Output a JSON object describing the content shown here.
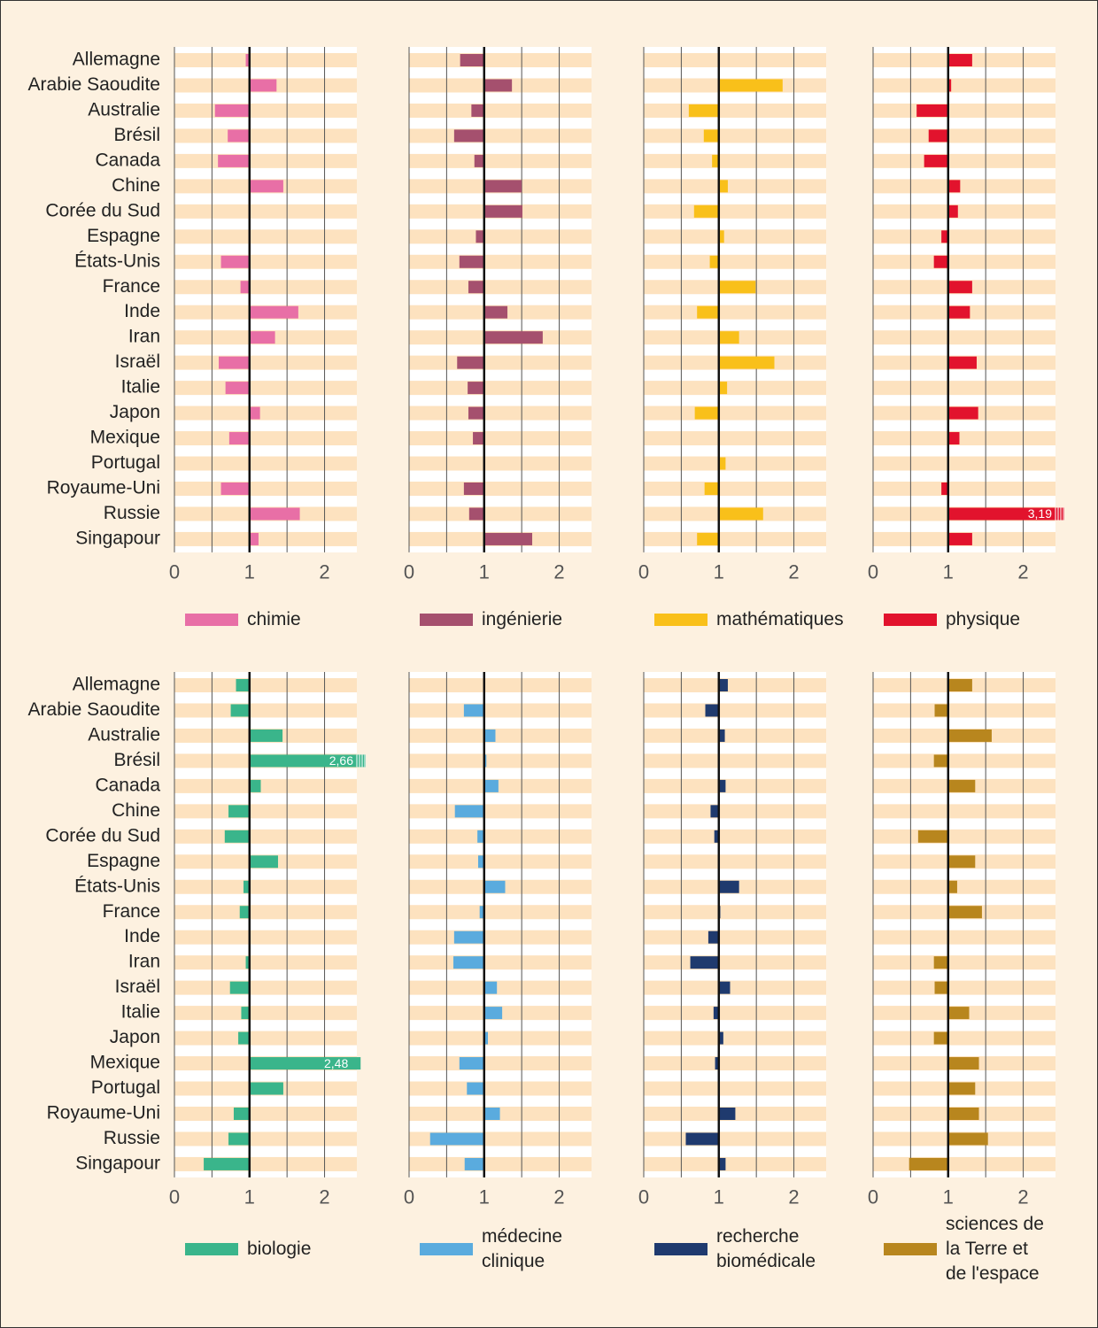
{
  "chart_data": [
    {
      "type": "bar",
      "categories": [
        "Allemagne",
        "Arabie Saoudite",
        "Australie",
        "Brésil",
        "Canada",
        "Chine",
        "Corée du Sud",
        "Espagne",
        "États-Unis",
        "France",
        "Inde",
        "Iran",
        "Israël",
        "Italie",
        "Japon",
        "Mexique",
        "Portugal",
        "Royaume-Uni",
        "Russie",
        "Singapour"
      ],
      "series": [
        {
          "name": "chimie",
          "color": "#e86fa6",
          "values": [
            0.95,
            1.36,
            0.54,
            0.71,
            0.58,
            1.45,
            1.0,
            1.0,
            0.62,
            0.88,
            1.65,
            1.34,
            0.59,
            0.68,
            1.14,
            0.73,
            1.0,
            0.62,
            1.67,
            1.12
          ]
        }
      ],
      "xlim": [
        0,
        2.43
      ],
      "xticks": [
        0,
        1,
        2
      ],
      "minor_xticks": [
        0.5,
        1.5
      ],
      "baseline": 1,
      "grid": true
    },
    {
      "type": "bar",
      "series": [
        {
          "name": "ingénierie",
          "color": "#a5506e",
          "values": [
            0.68,
            1.37,
            0.83,
            0.6,
            0.87,
            1.5,
            1.51,
            0.89,
            0.67,
            0.79,
            1.31,
            1.78,
            0.64,
            0.78,
            0.79,
            0.85,
            1.0,
            0.73,
            0.8,
            1.64
          ]
        }
      ],
      "xlim": [
        0,
        2.43
      ],
      "xticks": [
        0,
        1,
        2
      ],
      "minor_xticks": [
        0.5,
        1.5
      ],
      "baseline": 1,
      "grid": true
    },
    {
      "type": "bar",
      "series": [
        {
          "name": "mathématiques",
          "color": "#f9c01a",
          "values": [
            1.0,
            1.85,
            0.6,
            0.8,
            0.91,
            1.12,
            0.67,
            1.07,
            0.88,
            1.49,
            0.71,
            1.27,
            1.74,
            1.11,
            0.68,
            1.01,
            1.09,
            0.81,
            1.59,
            0.71
          ]
        }
      ],
      "xlim": [
        0,
        2.43
      ],
      "xticks": [
        0,
        1,
        2
      ],
      "minor_xticks": [
        0.5,
        1.5
      ],
      "baseline": 1,
      "grid": true
    },
    {
      "type": "bar",
      "series": [
        {
          "name": "physique",
          "color": "#e2132d",
          "values": [
            1.32,
            1.04,
            0.58,
            0.74,
            0.68,
            1.16,
            1.13,
            0.91,
            0.81,
            1.32,
            1.29,
            1.01,
            1.38,
            1.0,
            1.4,
            1.15,
            1.0,
            0.91,
            3.19,
            1.32
          ],
          "value_labels": [
            null,
            null,
            null,
            null,
            null,
            null,
            null,
            null,
            null,
            null,
            null,
            null,
            null,
            null,
            null,
            null,
            null,
            null,
            "3,19",
            null
          ]
        }
      ],
      "xlim": [
        0,
        2.43
      ],
      "xticks": [
        0,
        1,
        2
      ],
      "minor_xticks": [
        0.5,
        1.5
      ],
      "baseline": 1,
      "grid": true
    },
    {
      "type": "bar",
      "categories": [
        "Allemagne",
        "Arabie Saoudite",
        "Australie",
        "Brésil",
        "Canada",
        "Chine",
        "Corée du Sud",
        "Espagne",
        "États-Unis",
        "France",
        "Inde",
        "Iran",
        "Israël",
        "Italie",
        "Japon",
        "Mexique",
        "Portugal",
        "Royaume-Uni",
        "Russie",
        "Singapour"
      ],
      "series": [
        {
          "name": "biologie",
          "color": "#3ab58b",
          "values": [
            0.82,
            0.75,
            1.44,
            2.66,
            1.15,
            0.72,
            0.67,
            1.38,
            0.92,
            0.87,
            1.0,
            0.95,
            0.74,
            0.89,
            0.85,
            2.48,
            1.45,
            0.79,
            0.72,
            0.39
          ],
          "value_labels": [
            null,
            null,
            null,
            "2,66",
            null,
            null,
            null,
            null,
            null,
            null,
            null,
            null,
            null,
            null,
            null,
            "2,48",
            null,
            null,
            null,
            null
          ]
        }
      ],
      "xlim": [
        0,
        2.43
      ],
      "xticks": [
        0,
        1,
        2
      ],
      "minor_xticks": [
        0.5,
        1.5
      ],
      "baseline": 1,
      "grid": true
    },
    {
      "type": "bar",
      "series": [
        {
          "name": "médecine clinique",
          "color": "#5aabde",
          "values": [
            1.0,
            0.73,
            1.15,
            1.03,
            1.19,
            0.61,
            0.91,
            0.92,
            1.28,
            0.94,
            0.6,
            0.59,
            1.17,
            1.24,
            1.05,
            0.67,
            0.77,
            1.21,
            0.28,
            0.74
          ]
        }
      ],
      "xlim": [
        0,
        2.43
      ],
      "xticks": [
        0,
        1,
        2
      ],
      "minor_xticks": [
        0.5,
        1.5
      ],
      "baseline": 1,
      "grid": true
    },
    {
      "type": "bar",
      "series": [
        {
          "name": "recherche biomédicale",
          "color": "#1f3a6e",
          "values": [
            1.12,
            0.82,
            1.08,
            1.0,
            1.09,
            0.89,
            0.94,
            1.0,
            1.27,
            1.02,
            0.86,
            0.62,
            1.15,
            0.93,
            1.06,
            0.95,
            1.0,
            1.22,
            0.56,
            1.09
          ]
        }
      ],
      "xlim": [
        0,
        2.43
      ],
      "xticks": [
        0,
        1,
        2
      ],
      "minor_xticks": [
        0.5,
        1.5
      ],
      "baseline": 1,
      "grid": true
    },
    {
      "type": "bar",
      "series": [
        {
          "name": "sciences de la Terre et de l'espace",
          "color": "#b8861e",
          "values": [
            1.32,
            0.82,
            1.58,
            0.81,
            1.36,
            1.0,
            0.6,
            1.36,
            1.12,
            1.45,
            1.0,
            0.81,
            0.82,
            1.28,
            0.81,
            1.41,
            1.36,
            1.41,
            1.53,
            0.48
          ]
        }
      ],
      "xlim": [
        0,
        2.43
      ],
      "xticks": [
        0,
        1,
        2
      ],
      "minor_xticks": [
        0.5,
        1.5
      ],
      "baseline": 1,
      "grid": true
    }
  ]
}
